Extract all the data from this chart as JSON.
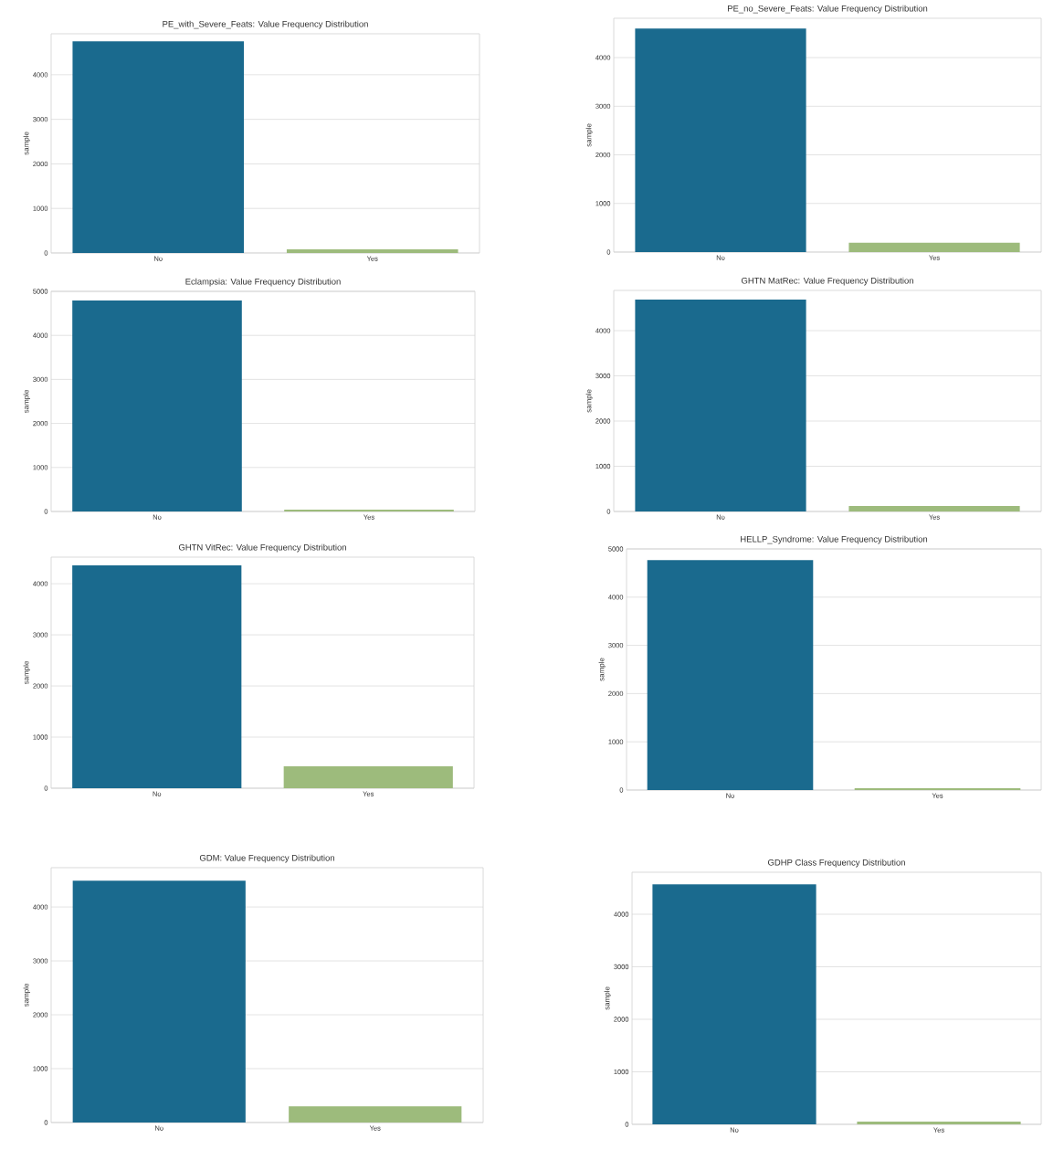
{
  "chart_data": [
    {
      "type": "bar",
      "title": "PE_with_Severe_Feats: Value Frequency Distribution",
      "ylabel": "sample",
      "categories": [
        "No",
        "Yes"
      ],
      "values": [
        4750,
        80
      ],
      "colors": [
        "#1a6a8e",
        "#9dbb7c"
      ],
      "ylim": [
        0,
        4920
      ],
      "yticks": [
        0,
        1000,
        2000,
        3000,
        4000
      ],
      "grid": "y"
    },
    {
      "type": "bar",
      "title": "PE_no_Severe_Feats: Value Frequency Distribution",
      "ylabel": "sample",
      "categories": [
        "No",
        "Yes"
      ],
      "values": [
        4600,
        190
      ],
      "colors": [
        "#1a6a8e",
        "#9dbb7c"
      ],
      "ylim": [
        0,
        4810
      ],
      "yticks": [
        0,
        1000,
        2000,
        3000,
        4000
      ],
      "grid": "y"
    },
    {
      "type": "bar",
      "title": "Eclampsia: Value Frequency Distribution",
      "ylabel": "sample",
      "categories": [
        "No",
        "Yes"
      ],
      "values": [
        4790,
        40
      ],
      "colors": [
        "#1a6a8e",
        "#9dbb7c"
      ],
      "ylim": [
        0,
        5000
      ],
      "yticks": [
        0,
        1000,
        2000,
        3000,
        4000,
        5000
      ],
      "grid": "y"
    },
    {
      "type": "bar",
      "title": "GHTN MatRec: Value Frequency Distribution",
      "ylabel": "sample",
      "categories": [
        "No",
        "Yes"
      ],
      "values": [
        4690,
        120
      ],
      "colors": [
        "#1a6a8e",
        "#9dbb7c"
      ],
      "ylim": [
        0,
        4890
      ],
      "yticks": [
        0,
        1000,
        2000,
        3000,
        4000
      ],
      "grid": "y"
    },
    {
      "type": "bar",
      "title": "GHTN VitRec: Value Frequency Distribution",
      "ylabel": "sample",
      "categories": [
        "No",
        "Yes"
      ],
      "values": [
        4360,
        430
      ],
      "colors": [
        "#1a6a8e",
        "#9dbb7c"
      ],
      "ylim": [
        0,
        4520
      ],
      "yticks": [
        0,
        1000,
        2000,
        3000,
        4000
      ],
      "grid": "y"
    },
    {
      "type": "bar",
      "title": "HELLP_Syndrome: Value Frequency Distribution",
      "ylabel": "sample",
      "categories": [
        "No",
        "Yes"
      ],
      "values": [
        4770,
        40
      ],
      "colors": [
        "#1a6a8e",
        "#9dbb7c"
      ],
      "ylim": [
        0,
        5000
      ],
      "yticks": [
        0,
        1000,
        2000,
        3000,
        4000,
        5000
      ],
      "grid": "y"
    },
    {
      "type": "bar",
      "title": "GDM: Value Frequency Distribution",
      "ylabel": "sample",
      "categories": [
        "No",
        "Yes"
      ],
      "values": [
        4490,
        300
      ],
      "colors": [
        "#1a6a8e",
        "#9dbb7c"
      ],
      "ylim": [
        0,
        4730
      ],
      "yticks": [
        0,
        1000,
        2000,
        3000,
        4000
      ],
      "grid": "y"
    },
    {
      "type": "bar",
      "title": "GDHP Class Frequency Distribution",
      "ylabel": "sample",
      "categories": [
        "No",
        "Yes"
      ],
      "values": [
        4570,
        50
      ],
      "colors": [
        "#1a6a8e",
        "#9dbb7c"
      ],
      "ylim": [
        0,
        4800
      ],
      "yticks": [
        0,
        1000,
        2000,
        3000,
        4000
      ],
      "grid": "y"
    }
  ]
}
